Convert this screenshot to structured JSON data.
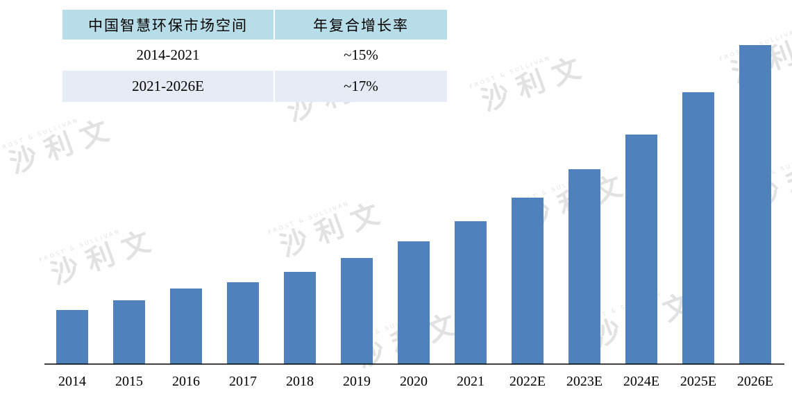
{
  "table": {
    "headers": [
      "中国智慧环保市场空间",
      "年复合增长率"
    ],
    "rows": [
      {
        "period": "2014-2021",
        "cagr": "~15%"
      },
      {
        "period": "2021-2026E",
        "cagr": "~17%"
      }
    ]
  },
  "watermark": {
    "text": "沙 利 文",
    "subtext": "FROST & SULLIVAN"
  },
  "colors": {
    "bar": "#4f81bd",
    "header_bg": "#b7dde8",
    "alt_row_bg": "#e6ebf5"
  },
  "chart_data": {
    "type": "bar",
    "categories": [
      "2014",
      "2015",
      "2016",
      "2017",
      "2018",
      "2019",
      "2020",
      "2021",
      "2022E",
      "2023E",
      "2024E",
      "2025E",
      "2026E"
    ],
    "series": [
      {
        "values": [
          78,
          92,
          109,
          118,
          133,
          153,
          177,
          206,
          240,
          281,
          331,
          392,
          460
        ]
      }
    ],
    "title": "",
    "xlabel": "",
    "ylabel": "",
    "ylim": [
      0,
      460
    ],
    "y_axis_visible": false,
    "grid": false,
    "legend": "none"
  }
}
